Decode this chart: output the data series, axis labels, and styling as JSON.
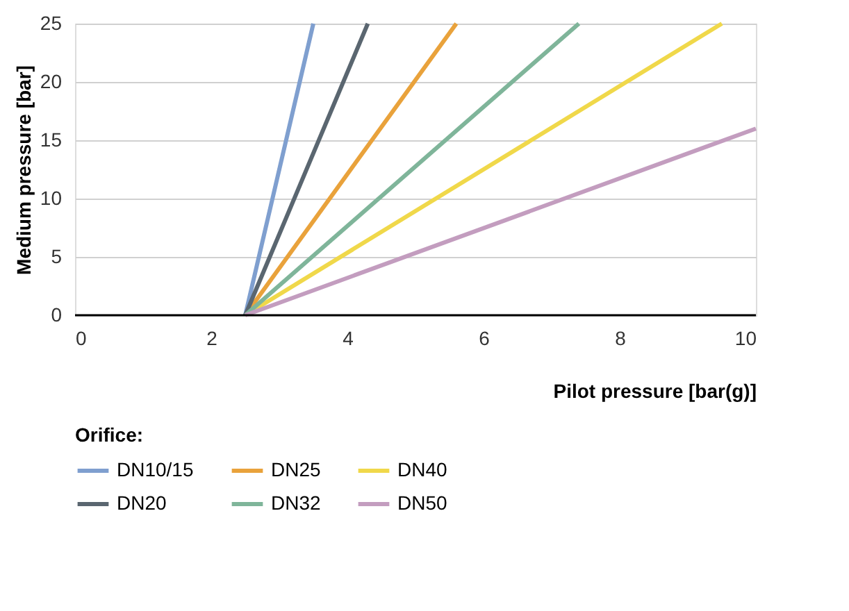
{
  "chart_data": {
    "type": "line",
    "xlabel": "Pilot pressure [bar(g)]",
    "ylabel": "Medium pressure [bar]",
    "legend_title": "Orifice:",
    "xlim": [
      0,
      10
    ],
    "xticks": [
      0,
      2,
      4,
      6,
      8,
      10
    ],
    "ylim": [
      0,
      25
    ],
    "yticks": [
      0,
      5,
      10,
      15,
      20,
      25
    ],
    "grid": "y",
    "legend": "bottom left",
    "marker": "none",
    "line_style": "solid",
    "series": [
      {
        "name": "DN10/15",
        "color": "#7f9fcf",
        "x": [
          2.5,
          3.5
        ],
        "values": [
          0,
          25
        ]
      },
      {
        "name": "DN25",
        "color": "#e9a23b",
        "x": [
          2.5,
          5.6
        ],
        "values": [
          0,
          25
        ]
      },
      {
        "name": "DN40",
        "color": "#f0d84a",
        "x": [
          2.5,
          9.5
        ],
        "values": [
          0,
          25
        ]
      },
      {
        "name": "DN20",
        "color": "#5a6670",
        "x": [
          2.5,
          4.3
        ],
        "values": [
          0,
          25
        ]
      },
      {
        "name": "DN32",
        "color": "#7fb59a",
        "x": [
          2.5,
          7.4
        ],
        "values": [
          0,
          25
        ]
      },
      {
        "name": "DN50",
        "color": "#c39dbf",
        "x": [
          2.5,
          10
        ],
        "values": [
          0,
          16
        ]
      }
    ]
  }
}
